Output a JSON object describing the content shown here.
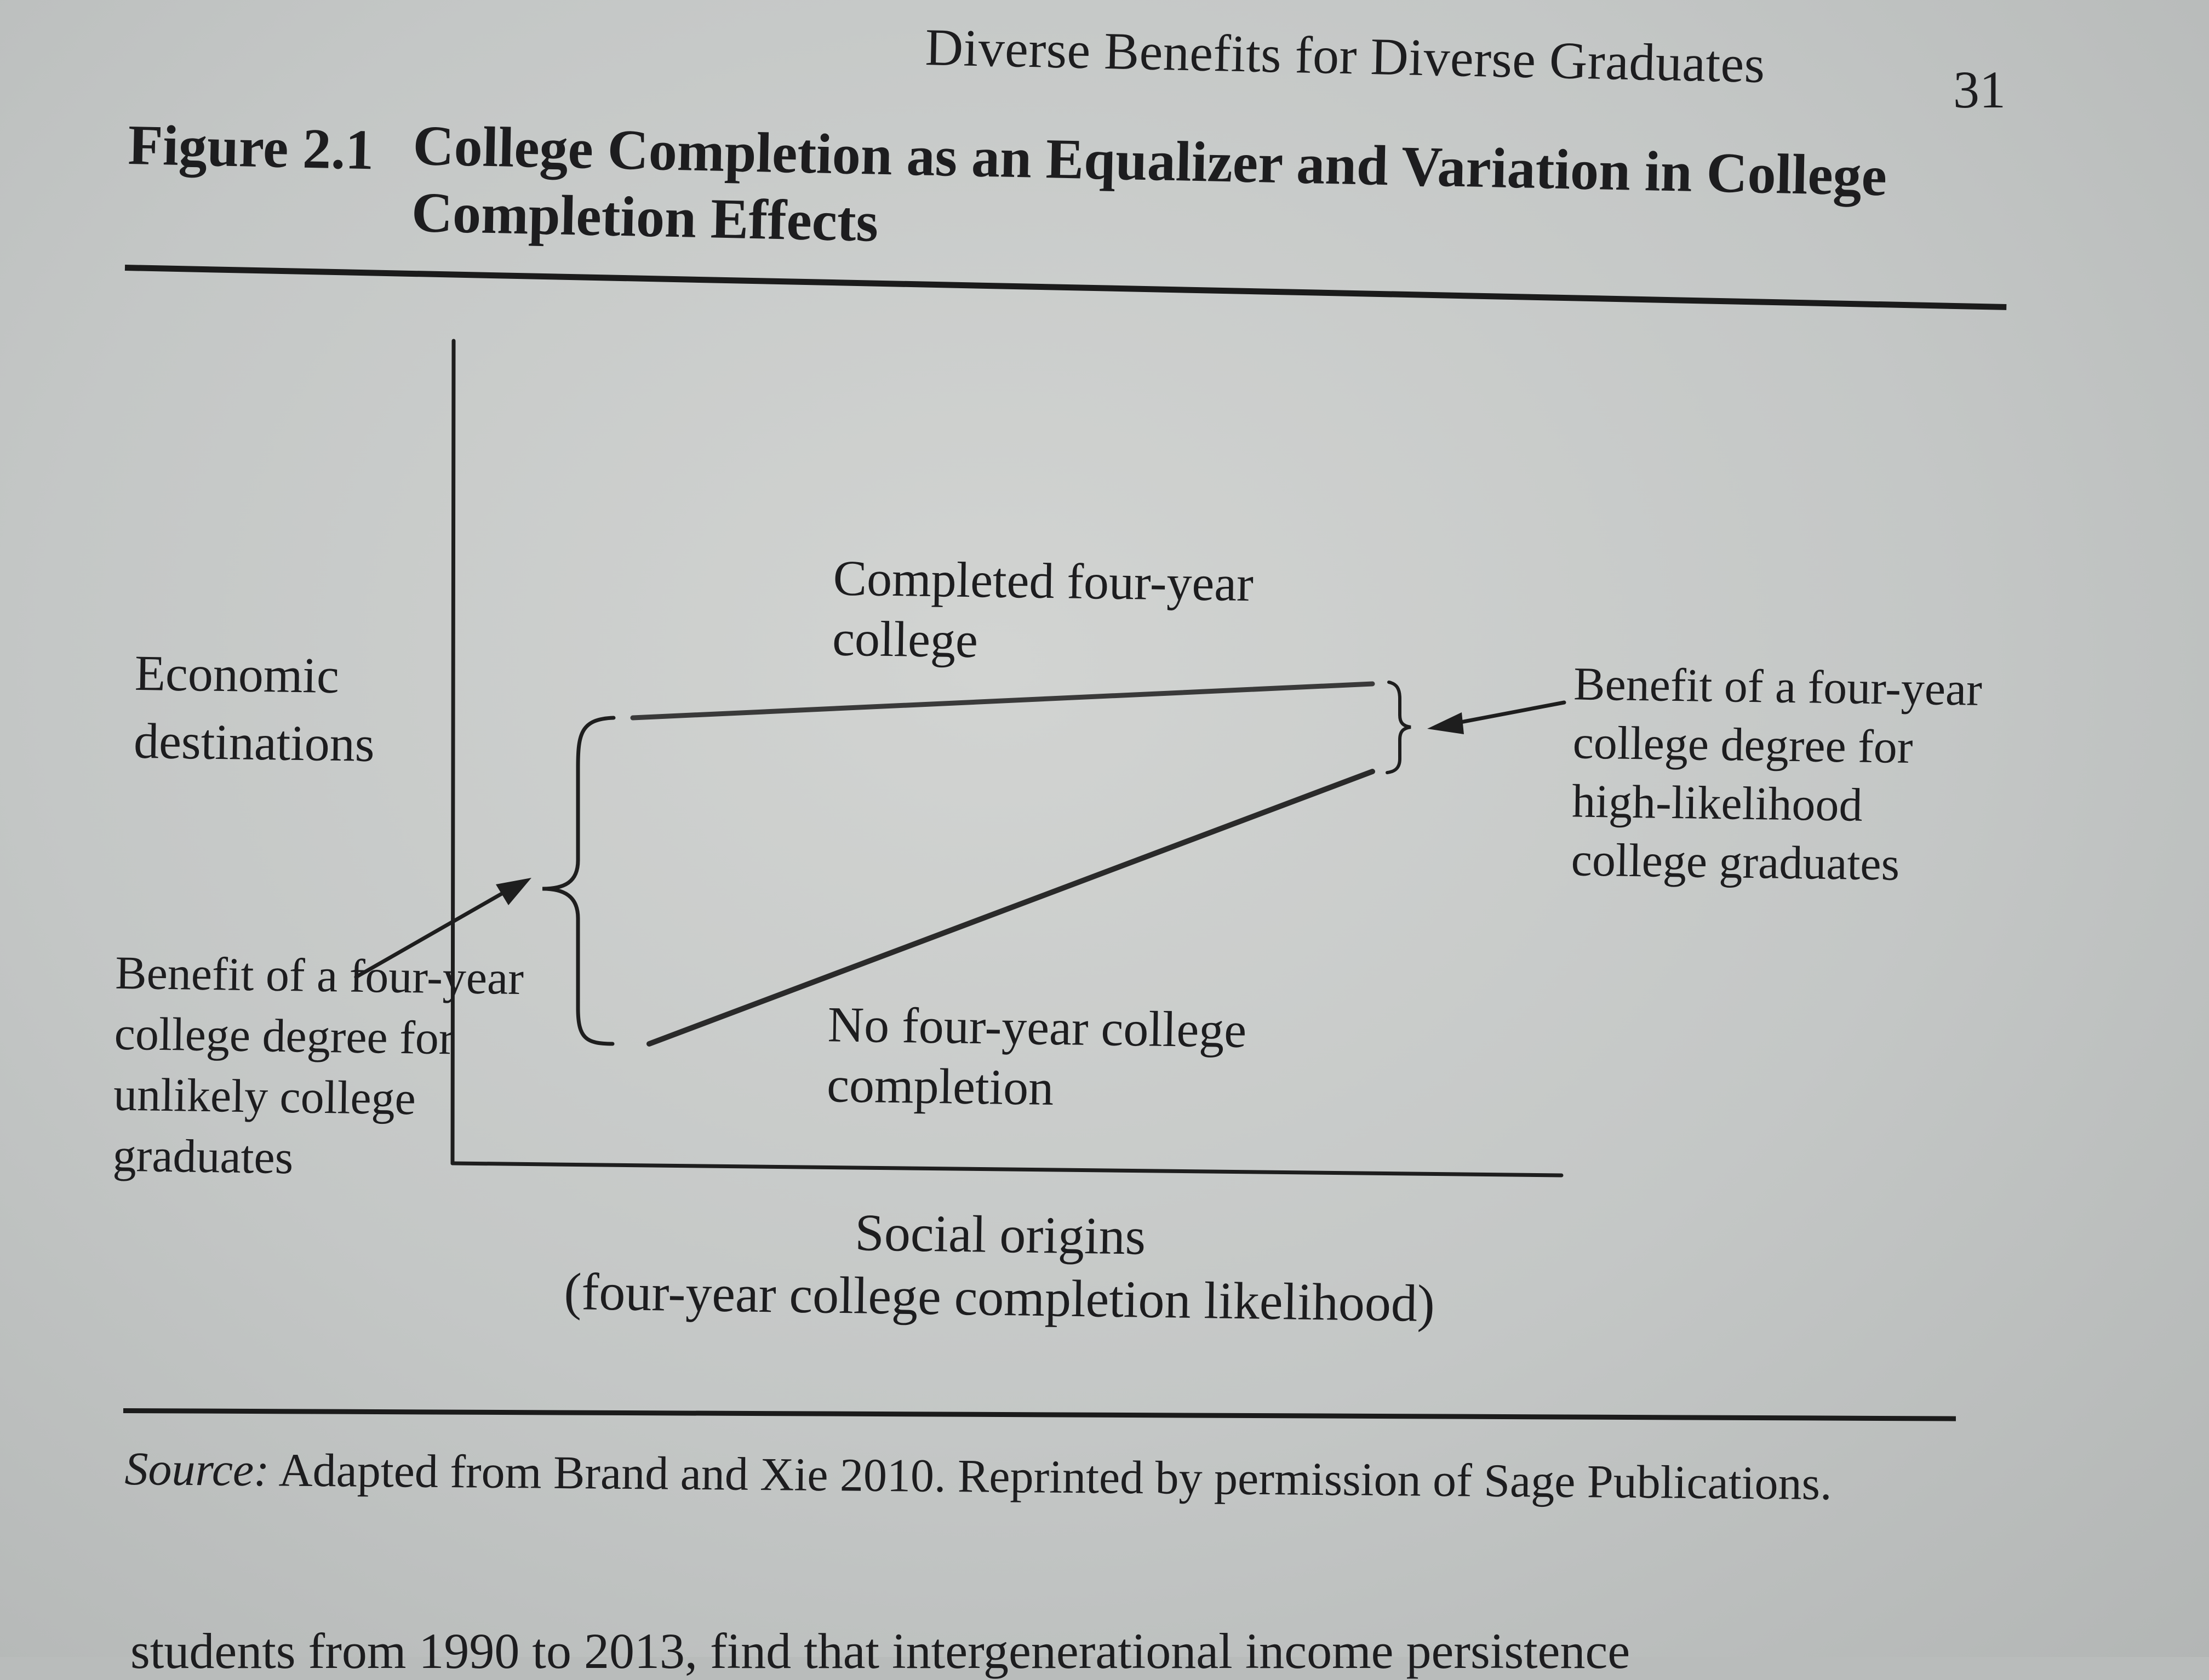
{
  "running_head": "Diverse Benefits for Diverse Graduates",
  "page_number": "31",
  "figure": {
    "label": "Figure 2.1",
    "title": "College Completion as an Equalizer and Variation in College Completion Effects"
  },
  "diagram": {
    "y_axis_label": "Economic destinations",
    "x_axis_label_line1": "Social origins",
    "x_axis_label_line2": "(four-year college completion likelihood)",
    "line_completed_label": "Completed four-year college",
    "line_not_completed_label": "No four-year college completion",
    "benefit_high_label": "Benefit of a four-year college degree for high-likelihood college graduates",
    "benefit_low_label": "Benefit of a four-year college degree for unlikely college graduates"
  },
  "source": {
    "prefix": "Source:",
    "text": " Adapted from Brand and Xie 2010. Reprinted by permission of Sage Publications."
  },
  "following_text": "students from 1990 to 2013, find that intergenerational income persistence"
}
